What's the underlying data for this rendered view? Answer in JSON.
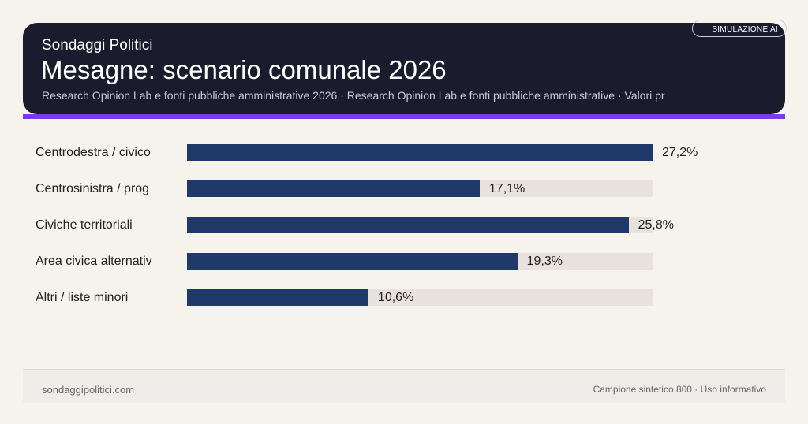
{
  "header": {
    "brand": "Sondaggi Politici",
    "title": "Mesagne: scenario comunale 2026",
    "subtitle": "Research Opinion Lab e fonti pubbliche amministrative 2026 · Research Opinion Lab e fonti pubbliche amministrative · Valori pr",
    "badge": "SIMULAZIONE AI"
  },
  "colors": {
    "bar": "#1f3a68",
    "track": "#e8e2dc",
    "accent": "#7c3aed",
    "header_bg": "#1b1b2e"
  },
  "chart_data": {
    "type": "bar",
    "orientation": "horizontal",
    "categories": [
      "Centrodestra / civico",
      "Centrosinistra / prog",
      "Civiche territoriali",
      "Area civica alternativ",
      "Altri / liste minori"
    ],
    "values": [
      27.2,
      17.1,
      25.8,
      19.3,
      10.6
    ],
    "value_labels": [
      "27,2%",
      "17,1%",
      "25,8%",
      "19,3%",
      "10,6%"
    ],
    "xlim": [
      0,
      27.2
    ],
    "grid": false
  },
  "footer": {
    "left": "sondaggipolitici.com",
    "right": "Campione sintetico 800 · Uso informativo"
  }
}
